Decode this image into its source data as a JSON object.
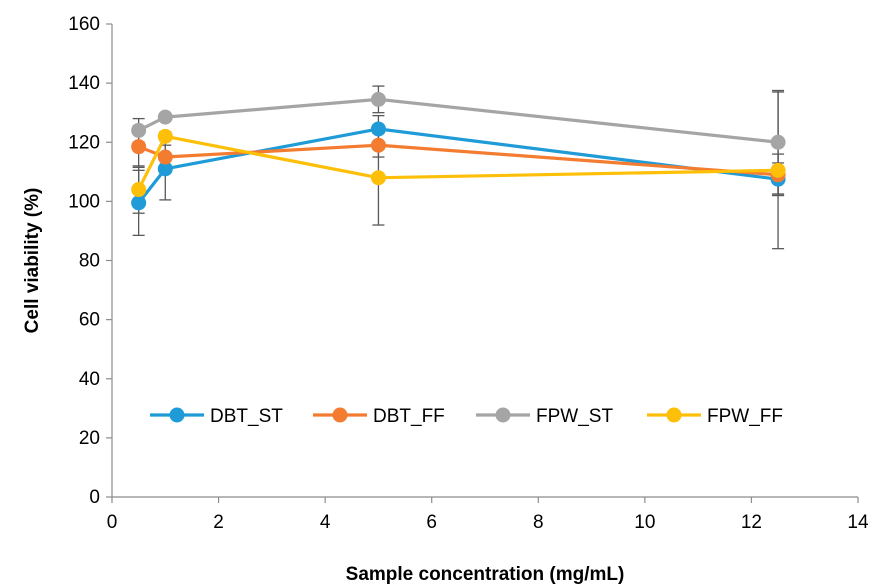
{
  "chart_data": {
    "type": "line",
    "title": "",
    "xlabel": "Sample concentration (mg/mL)",
    "ylabel": "Cell viability (%)",
    "xlim": [
      0,
      14
    ],
    "ylim": [
      0,
      160
    ],
    "x_ticks": [
      0,
      2,
      4,
      6,
      8,
      10,
      12,
      14
    ],
    "y_ticks": [
      0,
      20,
      40,
      60,
      80,
      100,
      120,
      140,
      160
    ],
    "grid": false,
    "legend_position": "inside-bottom",
    "series": [
      {
        "name": "DBT_ST",
        "color": "#1f9bd7",
        "x": [
          0.5,
          1,
          5,
          12.5
        ],
        "y": [
          99.5,
          111,
          124.5,
          107.5
        ],
        "error": [
          11,
          10.5,
          4.5,
          5.5
        ]
      },
      {
        "name": "DBT_FF",
        "color": "#f47c30",
        "x": [
          0.5,
          1,
          5,
          12.5
        ],
        "y": [
          118.5,
          115,
          119,
          109
        ],
        "error": [
          7,
          4,
          4,
          7
        ]
      },
      {
        "name": "FPW_ST",
        "color": "#a5a5a5",
        "x": [
          0.5,
          1,
          5,
          12.5
        ],
        "y": [
          124,
          128.5,
          134.5,
          120
        ],
        "error": [
          4,
          1,
          4.5,
          17.5
        ]
      },
      {
        "name": "FPW_FF",
        "color": "#fdbf08",
        "x": [
          0.5,
          1,
          5,
          12.5
        ],
        "y": [
          104,
          122,
          108,
          110.5
        ],
        "error": [
          8,
          1.5,
          16,
          26.5
        ]
      }
    ]
  }
}
